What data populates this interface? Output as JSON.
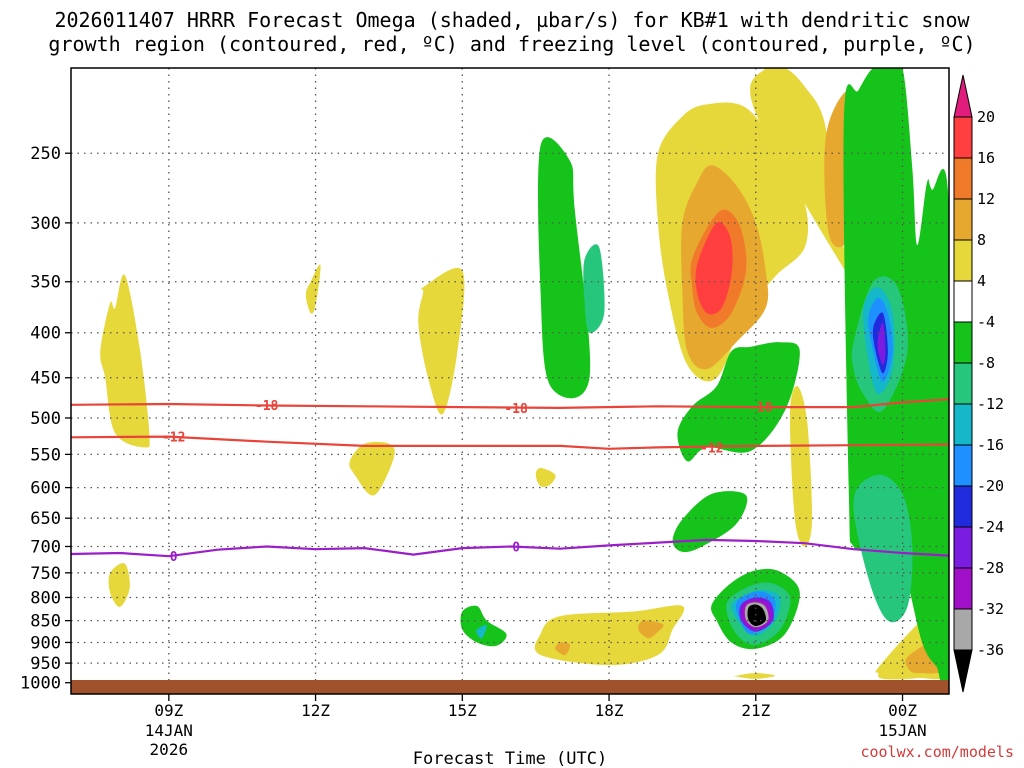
{
  "title_line1": "2026011407 HRRR Forecast Omega (shaded, µbar/s) for KB#1 with dendritic snow",
  "title_line2": "growth region (contoured, red, ºC) and freezing level (contoured, purple, ºC)",
  "credit": "coolwx.com/models",
  "colors": {
    "frame": "#000000",
    "grid": "#555555",
    "ground": "#a0522d",
    "dgz_line": "#e8443a",
    "freezing_line": "#9b1fc8"
  },
  "chart_data": {
    "type": "heatmap",
    "title": "2026011407 HRRR Forecast Omega (shaded, µbar/s) for KB#1 with dendritic snow growth region (contoured, red, ºC) and freezing level (contoured, purple, ºC)",
    "xlabel": "Forecast Time (UTC)",
    "ylabel": "",
    "x_range_hours": [
      7,
      24.95
    ],
    "y_range_hPa": [
      200,
      1030
    ],
    "x_ticks": [
      {
        "hour": 9,
        "label": "09Z",
        "sub1": "14JAN",
        "sub2": "2026"
      },
      {
        "hour": 12,
        "label": "12Z",
        "sub1": "",
        "sub2": ""
      },
      {
        "hour": 15,
        "label": "15Z",
        "sub1": "",
        "sub2": ""
      },
      {
        "hour": 18,
        "label": "18Z",
        "sub1": "",
        "sub2": ""
      },
      {
        "hour": 21,
        "label": "21Z",
        "sub1": "",
        "sub2": ""
      },
      {
        "hour": 24,
        "label": "00Z",
        "sub1": "15JAN",
        "sub2": ""
      }
    ],
    "y_ticks": [
      250,
      300,
      350,
      400,
      450,
      500,
      550,
      600,
      650,
      700,
      750,
      800,
      850,
      900,
      950,
      1000
    ],
    "colorbar": {
      "labels": [
        "20",
        "16",
        "12",
        "8",
        "4",
        "-4",
        "-8",
        "-12",
        "-16",
        "-20",
        "-24",
        "-28",
        "-32",
        "-36"
      ],
      "colors": [
        "#ff3f3f",
        "#f07a2a",
        "#e6a82e",
        "#e6d83a",
        "#ffffff",
        "#16c31a",
        "#26c77c",
        "#14b8c8",
        "#1e90ff",
        "#1f2bdc",
        "#7a1de0",
        "#a010c8",
        "#a8a8a8",
        "#000000"
      ],
      "top_arrow_color": "#e01c7c",
      "bottom_arrow_color": "#000000"
    },
    "contours": [
      {
        "name": "dgz-minus18",
        "label": "-18",
        "color": "#e8443a",
        "points": [
          [
            7,
            483
          ],
          [
            9,
            482
          ],
          [
            11,
            484
          ],
          [
            13,
            485
          ],
          [
            15,
            486
          ],
          [
            17,
            487
          ],
          [
            19,
            485
          ],
          [
            21,
            486
          ],
          [
            23,
            486
          ],
          [
            24,
            480
          ],
          [
            24.95,
            476
          ]
        ],
        "label_positions": [
          [
            11,
            483
          ],
          [
            16.1,
            487
          ],
          [
            21.1,
            485
          ]
        ]
      },
      {
        "name": "dgz-minus12",
        "label": "-12",
        "color": "#e8443a",
        "points": [
          [
            7,
            526
          ],
          [
            9,
            525
          ],
          [
            11,
            532
          ],
          [
            13,
            538
          ],
          [
            15,
            538
          ],
          [
            17,
            538
          ],
          [
            18,
            542
          ],
          [
            19,
            540
          ],
          [
            21,
            538
          ],
          [
            23,
            537
          ],
          [
            24.95,
            536
          ]
        ],
        "label_positions": [
          [
            9.1,
            525
          ],
          [
            20.1,
            540
          ]
        ]
      },
      {
        "name": "freezing-level",
        "label": "0",
        "color": "#9b1fc8",
        "points": [
          [
            7,
            714
          ],
          [
            8,
            712
          ],
          [
            9,
            718
          ],
          [
            10,
            706
          ],
          [
            11,
            700
          ],
          [
            12,
            705
          ],
          [
            13,
            703
          ],
          [
            14,
            715
          ],
          [
            15,
            703
          ],
          [
            16,
            700
          ],
          [
            17,
            704
          ],
          [
            18,
            698
          ],
          [
            19,
            693
          ],
          [
            20,
            688
          ],
          [
            21,
            690
          ],
          [
            22,
            694
          ],
          [
            23,
            705
          ],
          [
            24,
            712
          ],
          [
            24.95,
            717
          ]
        ],
        "label_positions": [
          [
            9.1,
            718
          ],
          [
            16.1,
            700
          ]
        ]
      }
    ],
    "omega_regions": [
      {
        "v": 4,
        "hours": [
          7.9,
          8.1,
          8.4,
          8.6,
          8.5,
          7.9,
          7.7,
          7.6,
          7.8
        ],
        "hpa": [
          375,
          344,
          415,
          520,
          540,
          520,
          450,
          420,
          370
        ]
      },
      {
        "v": 4,
        "hours": [
          7.8,
          8.1,
          8.2,
          8.0,
          7.8
        ],
        "hpa": [
          750,
          732,
          780,
          820,
          790
        ]
      },
      {
        "v": 4,
        "hours": [
          11.9,
          12.1,
          12.0,
          11.9,
          11.8
        ],
        "hpa": [
          350,
          335,
          372,
          380,
          362
        ]
      },
      {
        "v": 4,
        "hours": [
          14.2,
          15.0,
          14.9,
          14.6,
          14.3,
          14.1,
          14.2
        ],
        "hpa": [
          355,
          340,
          420,
          495,
          450,
          390,
          360
        ]
      },
      {
        "v": 4,
        "hours": [
          13.0,
          13.5,
          13.6,
          13.2,
          12.8,
          12.7
        ],
        "hpa": [
          535,
          535,
          555,
          612,
          580,
          560
        ]
      },
      {
        "v": 4,
        "hours": [
          16.6,
          16.9,
          16.8,
          16.6,
          16.5
        ],
        "hpa": [
          570,
          580,
          595,
          598,
          580
        ]
      },
      {
        "v": 4,
        "hours": [
          16.6,
          17.0,
          18.5,
          19.5,
          19.3,
          19.0,
          18.0,
          16.6
        ],
        "hpa": [
          880,
          840,
          830,
          818,
          870,
          930,
          955,
          930
        ]
      },
      {
        "v": 4,
        "hours": [
          19.0,
          19.5,
          20.0,
          20.8,
          21.5,
          22.0,
          22.0,
          21.4,
          20.8,
          20.2,
          19.6,
          19.2,
          19.0
        ],
        "hpa": [
          250,
          227,
          220,
          222,
          250,
          285,
          320,
          345,
          380,
          450,
          435,
          360,
          300
        ]
      },
      {
        "v": 4,
        "hours": [
          21.0,
          21.2,
          21.6,
          22.0,
          22.4,
          22.6,
          22.8,
          23.0,
          23.1
        ],
        "hpa": [
          225,
          200,
          200,
          210,
          230,
          285,
          320,
          340,
          360
        ]
      },
      {
        "v": 4,
        "hours": [
          21.7,
          21.85,
          22.05,
          22.15,
          22.0,
          21.8
        ],
        "hpa": [
          495,
          460,
          505,
          652,
          700,
          652
        ]
      },
      {
        "v": 4,
        "hours": [
          23.5,
          24.2,
          24.95,
          24.95,
          24.3,
          23.6,
          23.5
        ],
        "hpa": [
          962,
          870,
          800,
          970,
          988,
          990,
          975
        ]
      },
      {
        "v": 4,
        "hours": [
          20.6,
          21.0,
          21.4,
          21.0,
          20.6
        ],
        "hpa": [
          982,
          975,
          982,
          990,
          984
        ]
      },
      {
        "v": 8,
        "hours": [
          19.5,
          19.8,
          20.1,
          20.6,
          21.0,
          21.2,
          21.2,
          20.6,
          20.0,
          19.6,
          19.5
        ],
        "hpa": [
          300,
          270,
          258,
          272,
          300,
          340,
          375,
          410,
          440,
          420,
          360
        ]
      },
      {
        "v": 8,
        "hours": [
          22.5,
          22.9,
          23.2,
          23.1,
          22.8,
          22.5,
          22.4
        ],
        "hpa": [
          230,
          212,
          230,
          290,
          318,
          310,
          260
        ]
      },
      {
        "v": 8,
        "hours": [
          24.1,
          24.5,
          24.95,
          24.95,
          24.3,
          24.1
        ],
        "hpa": [
          935,
          900,
          850,
          960,
          975,
          960
        ]
      },
      {
        "v": 8,
        "hours": [
          18.7,
          19.1,
          19.0,
          18.8,
          18.6
        ],
        "hpa": [
          850,
          858,
          875,
          890,
          870
        ]
      },
      {
        "v": 8,
        "hours": [
          17.0,
          17.2,
          17.1,
          16.9
        ],
        "hpa": [
          900,
          905,
          930,
          915
        ]
      },
      {
        "v": 12,
        "hours": [
          19.7,
          20.1,
          20.4,
          20.7,
          20.8,
          20.5,
          20.1,
          19.8,
          19.7
        ],
        "hpa": [
          330,
          298,
          290,
          305,
          340,
          380,
          395,
          380,
          355
        ]
      },
      {
        "v": 16,
        "hours": [
          19.8,
          20.1,
          20.3,
          20.5,
          20.5,
          20.3,
          20.0,
          19.8
        ],
        "hpa": [
          335,
          305,
          300,
          315,
          345,
          375,
          380,
          360
        ]
      },
      {
        "v": 20,
        "hours": [
          19.9,
          20.1,
          20.3,
          20.3,
          20.2,
          20.0,
          19.9
        ],
        "hpa": [
          330,
          312,
          310,
          330,
          355,
          375,
          360
        ]
      },
      {
        "v": -4,
        "hours": [
          16.6,
          17.2,
          17.3,
          17.6,
          16.8,
          16.6
        ],
        "hpa": [
          245,
          255,
          290,
          450,
          460,
          360
        ]
      },
      {
        "v": -4,
        "hours": [
          15.0,
          15.3,
          15.5,
          15.9,
          15.7,
          15.3,
          15.0
        ],
        "hpa": [
          830,
          818,
          850,
          880,
          908,
          900,
          870
        ]
      },
      {
        "v": -4,
        "hours": [
          19.7,
          20.2,
          20.5,
          20.9,
          21.5,
          21.9,
          21.6,
          20.9,
          20.0,
          19.6,
          19.4
        ],
        "hpa": [
          485,
          460,
          420,
          415,
          410,
          420,
          490,
          545,
          540,
          560,
          520
        ]
      },
      {
        "v": -4,
        "hours": [
          19.5,
          20.1,
          20.8,
          20.6,
          19.9,
          19.5,
          19.3
        ],
        "hpa": [
          652,
          610,
          612,
          660,
          700,
          710,
          690
        ]
      },
      {
        "v": -4,
        "hours": [
          22.8,
          23.1,
          23.4,
          23.7,
          24.0,
          24.2,
          24.3,
          24.5,
          24.6,
          24.95,
          24.95,
          24.7,
          24.4,
          24.0,
          23.5,
          23.0,
          22.9
        ],
        "hpa": [
          230,
          212,
          200,
          200,
          200,
          260,
          318,
          270,
          275,
          290,
          990,
          960,
          900,
          740,
          700,
          700,
          600
        ]
      },
      {
        "v": -4,
        "hours": [
          20.1,
          20.5,
          21.0,
          21.5,
          21.9,
          21.6,
          21.0,
          20.5,
          20.2
        ],
        "hpa": [
          815,
          770,
          745,
          748,
          790,
          880,
          915,
          900,
          850
        ]
      },
      {
        "v": -8,
        "hours": [
          17.5,
          17.8,
          17.9,
          17.6,
          17.5
        ],
        "hpa": [
          330,
          320,
          380,
          400,
          370
        ]
      },
      {
        "v": -8,
        "hours": [
          23.0,
          23.4,
          23.9,
          24.1,
          23.6,
          23.2,
          23.0
        ],
        "hpa": [
          410,
          350,
          355,
          420,
          490,
          470,
          440
        ]
      },
      {
        "v": -8,
        "hours": [
          23.0,
          23.5,
          24.0,
          24.2,
          24.1,
          23.7,
          23.3
        ],
        "hpa": [
          620,
          580,
          610,
          700,
          820,
          850,
          760
        ]
      },
      {
        "v": -8,
        "hours": [
          20.4,
          20.8,
          21.3,
          21.7,
          21.5,
          21.0,
          20.6
        ],
        "hpa": [
          815,
          780,
          770,
          800,
          870,
          905,
          880
        ]
      },
      {
        "v": -12,
        "hours": [
          15.3,
          15.5,
          15.4,
          15.3
        ],
        "hpa": [
          870,
          860,
          890,
          880
        ]
      },
      {
        "v": -12,
        "hours": [
          23.2,
          23.5,
          23.8,
          23.8,
          23.5,
          23.3
        ],
        "hpa": [
          375,
          355,
          380,
          440,
          470,
          430
        ]
      },
      {
        "v": -12,
        "hours": [
          20.5,
          20.9,
          21.2,
          21.5,
          21.4,
          21.0,
          20.7
        ],
        "hpa": [
          815,
          790,
          785,
          800,
          850,
          885,
          860
        ]
      },
      {
        "v": -16,
        "hours": [
          23.3,
          23.5,
          23.7,
          23.8,
          23.6,
          23.4
        ],
        "hpa": [
          385,
          365,
          380,
          420,
          455,
          420
        ]
      },
      {
        "v": -16,
        "hours": [
          20.6,
          20.9,
          21.2,
          21.4,
          21.3,
          20.9,
          20.7
        ],
        "hpa": [
          812,
          790,
          790,
          810,
          850,
          880,
          855
        ]
      },
      {
        "v": -20,
        "hours": [
          23.4,
          23.6,
          23.7,
          23.6,
          23.45
        ],
        "hpa": [
          395,
          380,
          420,
          445,
          420
        ]
      },
      {
        "v": -24,
        "hours": [
          23.5,
          23.6,
          23.65,
          23.6,
          23.5
        ],
        "hpa": [
          405,
          390,
          420,
          435,
          420
        ]
      },
      {
        "v": -24,
        "hours": [
          20.7,
          21.0,
          21.3,
          21.35,
          21.0,
          20.7
        ],
        "hpa": [
          815,
          800,
          810,
          850,
          875,
          850
        ]
      },
      {
        "v": -28,
        "hours": [
          20.75,
          21.0,
          21.25,
          21.3,
          21.0,
          20.75
        ],
        "hpa": [
          815,
          805,
          815,
          850,
          870,
          850
        ]
      },
      {
        "v": -32,
        "hours": [
          20.8,
          21.0,
          21.2,
          21.25,
          21.0,
          20.8
        ],
        "hpa": [
          818,
          810,
          820,
          850,
          865,
          848
        ]
      },
      {
        "v": -36,
        "hours": [
          20.85,
          21.0,
          21.15,
          21.2,
          21.0,
          20.85
        ],
        "hpa": [
          822,
          815,
          825,
          850,
          862,
          848
        ]
      }
    ]
  }
}
